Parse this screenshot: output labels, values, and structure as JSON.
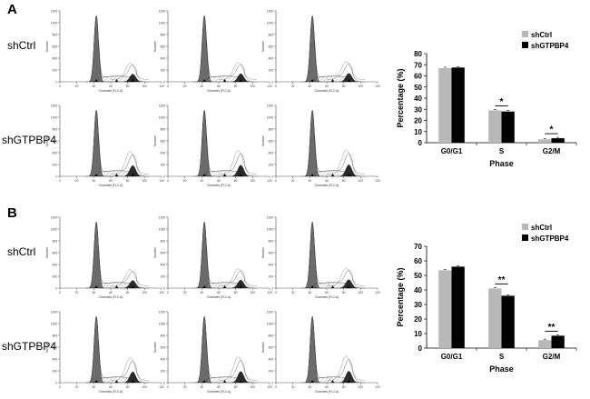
{
  "panels": [
    {
      "letter": "A",
      "row_labels": [
        "shCtrl",
        "shGTPBP4"
      ],
      "histogram_labels": {
        "y_axis": "Number",
        "x_axis": "Channels (FL2-A)",
        "x_ticks": [
          "0",
          "20",
          "40",
          "60",
          "80",
          "100",
          "120"
        ],
        "y_ticks": [
          "0",
          "200",
          "400",
          "600",
          "800",
          "1000",
          "1200"
        ]
      }
    },
    {
      "letter": "B",
      "row_labels": [
        "shCtrl",
        "shGTPBP4"
      ],
      "histogram_labels": {
        "y_axis": "Number",
        "x_axis": "Channels (FL2-A)",
        "x_ticks": [
          "0",
          "20",
          "40",
          "60",
          "80",
          "100",
          "120"
        ],
        "y_ticks": [
          "0",
          "200",
          "400",
          "600",
          "800",
          "1000",
          "1200"
        ]
      }
    }
  ],
  "colors": {
    "shCtrl": "#b8b8b8",
    "shGTPBP4": "#000000",
    "g0g1_peak": "#6b6b6b"
  },
  "chart_data": [
    {
      "type": "bar",
      "categories": [
        "G0/G1",
        "S",
        "G2/M"
      ],
      "series": [
        {
          "name": "shCtrl",
          "values": [
            67,
            29,
            3
          ]
        },
        {
          "name": "shGTPBP4",
          "values": [
            67.5,
            28,
            4
          ]
        }
      ],
      "xlabel": "Phase",
      "ylabel": "Percentage (%)",
      "ylim": [
        0,
        80
      ],
      "yticks": [
        "0",
        "10",
        "20",
        "30",
        "40",
        "50",
        "60",
        "70",
        "80"
      ],
      "significance": [
        "",
        "*",
        "*"
      ],
      "legend_position": "top-right"
    },
    {
      "type": "bar",
      "categories": [
        "G0/G1",
        "S",
        "G2/M"
      ],
      "series": [
        {
          "name": "shCtrl",
          "values": [
            53.5,
            41,
            5.5
          ]
        },
        {
          "name": "shGTPBP4",
          "values": [
            56,
            36,
            8.5
          ]
        }
      ],
      "xlabel": "Phase",
      "ylabel": "Percentage (%)",
      "ylim": [
        0,
        70
      ],
      "yticks": [
        "0",
        "10",
        "20",
        "30",
        "40",
        "50",
        "60",
        "70"
      ],
      "significance": [
        "",
        "**",
        "**"
      ],
      "legend_position": "top-right"
    }
  ]
}
